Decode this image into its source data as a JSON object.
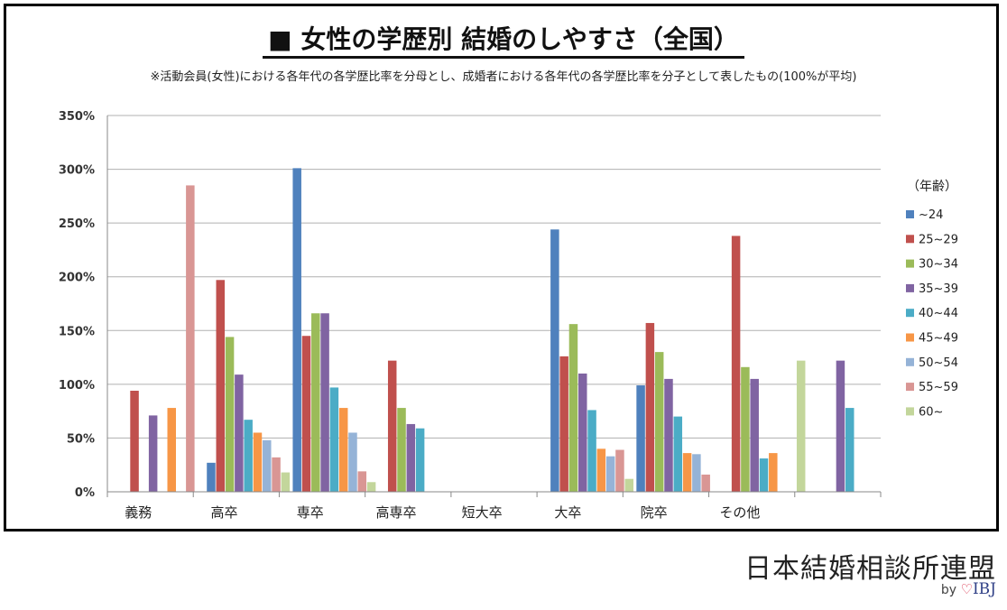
{
  "title": "■ 女性の学歴別 結婚のしやすさ（全国）",
  "subtitle": "※活動会員(女性)における各年代の各学歴比率を分母とし、成婚者における各年代の各学歴比率を分子として表したもの(100%が平均)",
  "brand": {
    "name": "日本結婚相談所連盟",
    "by": "by",
    "logo": "IBJ",
    "logo_icon": "heart-icon"
  },
  "chart_data": {
    "type": "bar",
    "categories": [
      "義務",
      "高卒",
      "専卒",
      "高専卒",
      "短大卒",
      "大卒",
      "院卒",
      "その他",
      ""
    ],
    "y_ticks": [
      "0%",
      "50%",
      "100%",
      "150%",
      "200%",
      "250%",
      "300%",
      "350%"
    ],
    "ylim": [
      0,
      350
    ],
    "grid": true,
    "legend_title": "（年齢）",
    "legend_position": "right",
    "series": [
      {
        "name": "~24",
        "color": "#4f81bd",
        "values": [
          null,
          27,
          301,
          null,
          null,
          244,
          99,
          null,
          null
        ]
      },
      {
        "name": "25~29",
        "color": "#c0504d",
        "values": [
          94,
          197,
          145,
          122,
          null,
          126,
          157,
          238,
          null
        ]
      },
      {
        "name": "30~34",
        "color": "#9bbb59",
        "values": [
          null,
          144,
          166,
          78,
          null,
          156,
          130,
          116,
          null
        ]
      },
      {
        "name": "35~39",
        "color": "#8064a2",
        "values": [
          71,
          109,
          166,
          63,
          null,
          110,
          105,
          105,
          122
        ]
      },
      {
        "name": "40~44",
        "color": "#4bacc6",
        "values": [
          null,
          67,
          97,
          59,
          null,
          76,
          70,
          31,
          78
        ]
      },
      {
        "name": "45~49",
        "color": "#f79646",
        "values": [
          78,
          55,
          78,
          null,
          null,
          40,
          36,
          36,
          null
        ]
      },
      {
        "name": "50~54",
        "color": "#95b3d7",
        "values": [
          null,
          48,
          55,
          null,
          null,
          33,
          35,
          null,
          null
        ]
      },
      {
        "name": "55~59",
        "color": "#d99694",
        "values": [
          285,
          32,
          19,
          null,
          null,
          39,
          16,
          null,
          null
        ]
      },
      {
        "name": "60~",
        "color": "#c3d69b",
        "values": [
          null,
          18,
          9,
          null,
          null,
          12,
          null,
          122,
          null
        ]
      }
    ]
  }
}
